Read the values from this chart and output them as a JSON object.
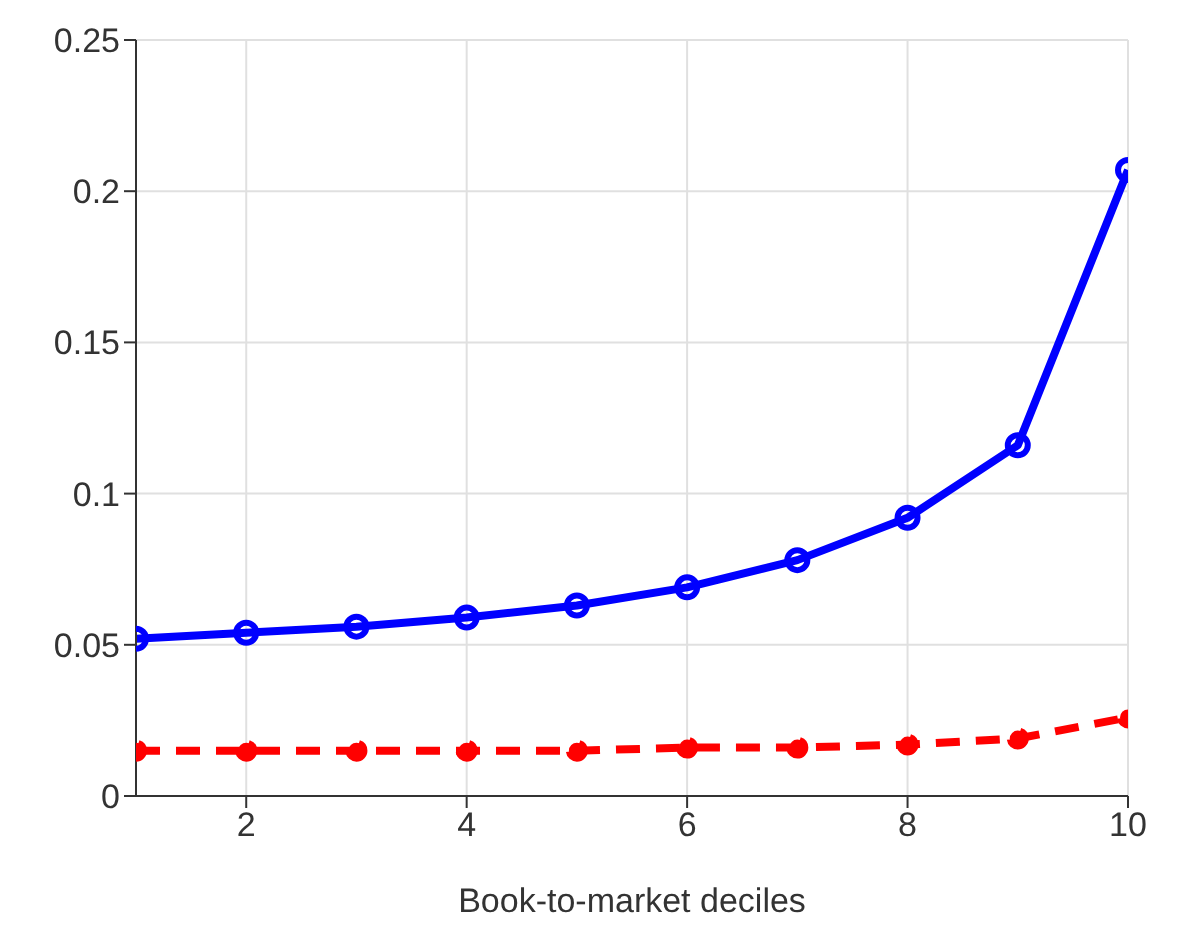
{
  "chart_data": {
    "type": "line",
    "xlabel": "Book-to-market deciles",
    "x": [
      1,
      2,
      3,
      4,
      5,
      6,
      7,
      8,
      9,
      10
    ],
    "series": [
      {
        "color": "#0000ff",
        "values": [
          0.052,
          0.054,
          0.056,
          0.059,
          0.063,
          0.069,
          0.078,
          0.092,
          0.116,
          0.207
        ],
        "marker": "circle",
        "line_style": "solid"
      },
      {
        "color": "#ff0000",
        "values": [
          0.015,
          0.015,
          0.015,
          0.015,
          0.015,
          0.016,
          0.016,
          0.017,
          0.019,
          0.026
        ],
        "marker": "circle",
        "line_style": "dashed"
      }
    ],
    "xlim": [
      1,
      10
    ],
    "xticks": [
      2,
      4,
      6,
      8,
      10
    ],
    "ylim": [
      0,
      0.25
    ],
    "yticks": [
      0,
      0.05,
      0.1,
      0.15,
      0.2,
      0.25
    ],
    "grid": true
  }
}
